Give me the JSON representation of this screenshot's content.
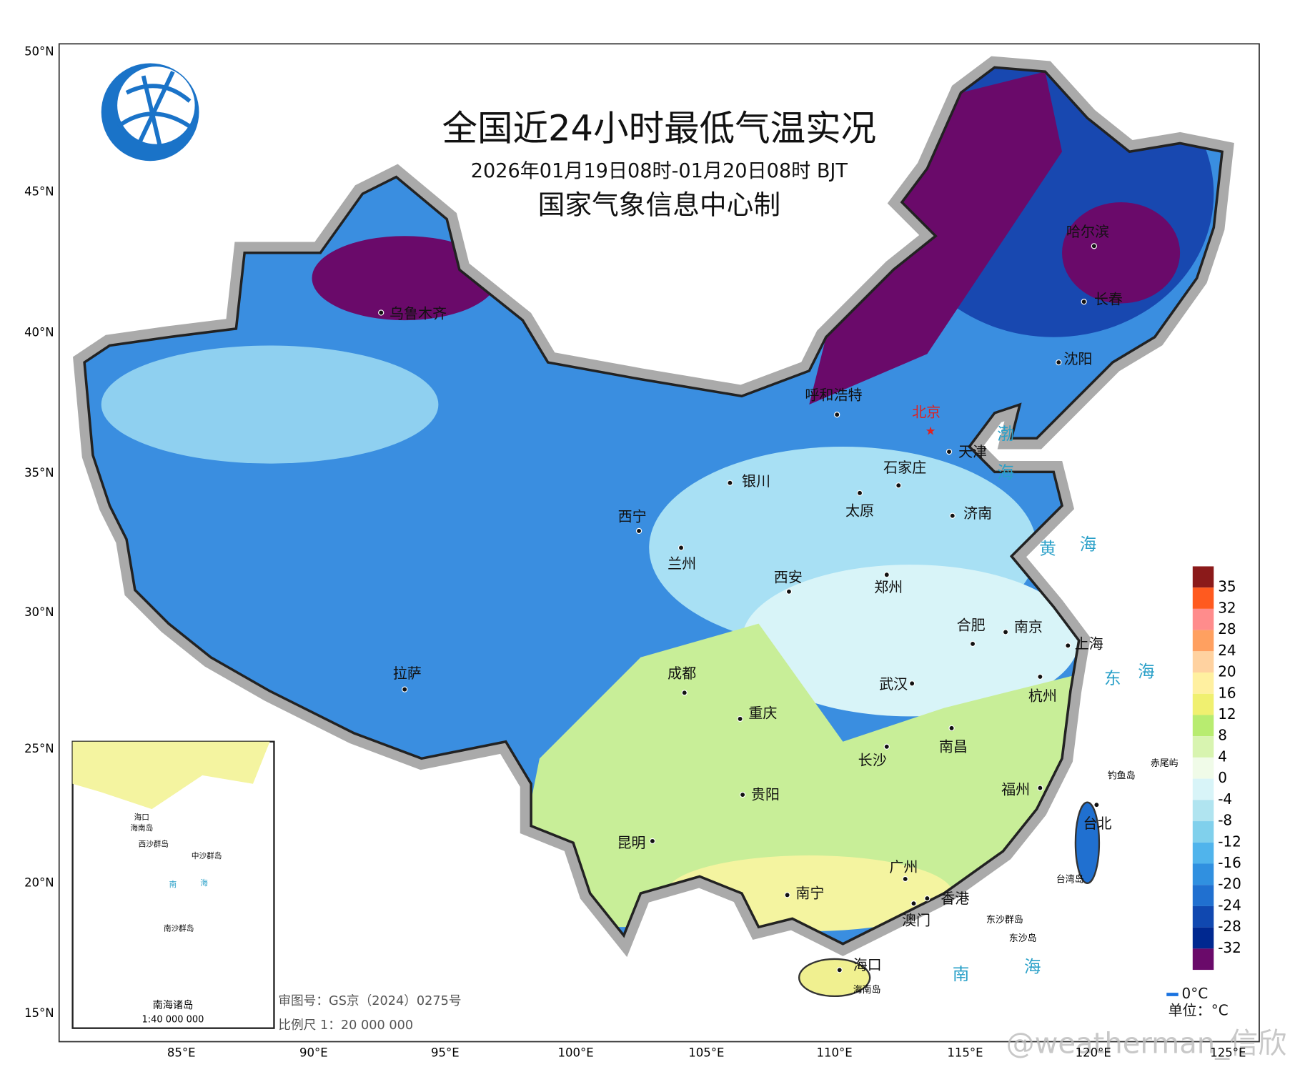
{
  "title": "全国近24小时最低气温实况",
  "subtitle": "2026年01月19日08时-01月20日08时 BJT",
  "producer": "国家气象信息中心制",
  "lat_labels": [
    "50°N",
    "45°N",
    "40°N",
    "35°N",
    "30°N",
    "25°N",
    "20°N",
    "15°N"
  ],
  "lon_labels": [
    "85°E",
    "90°E",
    "95°E",
    "100°E",
    "105°E",
    "110°E",
    "115°E",
    "120°E",
    "125°E"
  ],
  "cities": [
    "乌鲁木齐",
    "呼和浩特",
    "北京",
    "天津",
    "石家庄",
    "银川",
    "太原",
    "济南",
    "西宁",
    "兰州",
    "西安",
    "郑州",
    "合肥",
    "南京",
    "上海",
    "拉萨",
    "成都",
    "武汉",
    "杭州",
    "重庆",
    "长沙",
    "南昌",
    "贵阳",
    "福州",
    "昆明",
    "台北",
    "广州",
    "南宁",
    "香港",
    "澳门",
    "海口",
    "哈尔滨",
    "长春",
    "沈阳"
  ],
  "islands": [
    "钓鱼岛",
    "赤尾屿",
    "台湾岛",
    "海南岛",
    "东沙群岛",
    "东沙岛"
  ],
  "seas": [
    "渤",
    "海",
    "黄",
    "海",
    "东",
    "海",
    "南",
    "海"
  ],
  "legend": {
    "ticks": [
      35,
      32,
      28,
      24,
      20,
      16,
      12,
      8,
      4,
      0,
      -4,
      -8,
      -12,
      -16,
      -20,
      -24,
      -28,
      -32
    ],
    "colors": [
      "#8b1a1a",
      "#ff5a1f",
      "#ff8c8c",
      "#ffa060",
      "#ffd2a0",
      "#fff0a0",
      "#f0f070",
      "#b8ec70",
      "#d8f4b0",
      "#f0fbe8",
      "#d8f4f8",
      "#b0e4f0",
      "#80d0ec",
      "#50b4ec",
      "#3090e0",
      "#2070d0",
      "#1048b0",
      "#002890",
      "#6a0a6a"
    ],
    "zero_line": "0°C",
    "unit": "单位：°C"
  },
  "inset": {
    "title": "南海诸岛",
    "scale": "1:40 000 000",
    "labels": [
      "海口",
      "海南岛",
      "西沙群岛",
      "中沙群岛",
      "南",
      "海",
      "南沙群岛"
    ]
  },
  "approval": "审图号：GS京（2024）0275号",
  "map_scale": "比例尺 1：20 000 000",
  "watermark": "@weatherman_信欣"
}
